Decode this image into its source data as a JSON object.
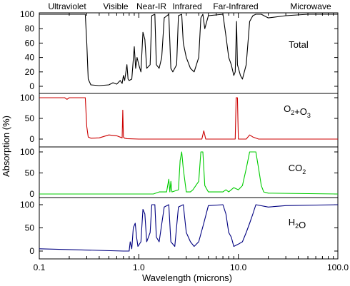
{
  "chart_data": {
    "type": "line",
    "xlabel": "Wavelength (microns)",
    "ylabel": "Absorption (%)",
    "x_scale": "log",
    "xlim": [
      0.1,
      100.0
    ],
    "ylim": [
      0,
      100
    ],
    "x_ticks": [
      {
        "value": 0.1,
        "label": "0.1"
      },
      {
        "value": 1.0,
        "label": "1.0"
      },
      {
        "value": 10.0,
        "label": "10.0"
      },
      {
        "value": 100.0,
        "label": "100.0"
      }
    ],
    "band_labels": [
      "Ultraviolet",
      "Visible",
      "Near-IR",
      "Infrared",
      "Far-Infrared",
      "Microwave"
    ],
    "panels": [
      {
        "name": "Total",
        "color": "#000000",
        "y_ticks": [
          "100",
          "80",
          "60",
          "40",
          "20",
          "0"
        ],
        "points": [
          [
            0.1,
            100
          ],
          [
            0.29,
            100
          ],
          [
            0.3,
            60
          ],
          [
            0.31,
            10
          ],
          [
            0.33,
            2
          ],
          [
            0.4,
            1
          ],
          [
            0.5,
            2
          ],
          [
            0.55,
            5
          ],
          [
            0.6,
            3
          ],
          [
            0.65,
            8
          ],
          [
            0.68,
            4
          ],
          [
            0.7,
            15
          ],
          [
            0.72,
            8
          ],
          [
            0.76,
            30
          ],
          [
            0.78,
            10
          ],
          [
            0.8,
            8
          ],
          [
            0.85,
            10
          ],
          [
            0.9,
            55
          ],
          [
            0.93,
            25
          ],
          [
            0.96,
            40
          ],
          [
            1.0,
            30
          ],
          [
            1.05,
            20
          ],
          [
            1.1,
            75
          ],
          [
            1.15,
            65
          ],
          [
            1.2,
            25
          ],
          [
            1.3,
            30
          ],
          [
            1.35,
            98
          ],
          [
            1.45,
            100
          ],
          [
            1.5,
            30
          ],
          [
            1.6,
            25
          ],
          [
            1.7,
            40
          ],
          [
            1.8,
            95
          ],
          [
            2.0,
            100
          ],
          [
            2.1,
            25
          ],
          [
            2.2,
            20
          ],
          [
            2.4,
            30
          ],
          [
            2.5,
            98
          ],
          [
            2.7,
            100
          ],
          [
            2.8,
            60
          ],
          [
            3.0,
            40
          ],
          [
            3.3,
            25
          ],
          [
            3.6,
            20
          ],
          [
            4.0,
            40
          ],
          [
            4.2,
            95
          ],
          [
            4.4,
            100
          ],
          [
            4.6,
            80
          ],
          [
            5.0,
            98
          ],
          [
            7.0,
            100
          ],
          [
            7.5,
            70
          ],
          [
            8.0,
            40
          ],
          [
            8.5,
            30
          ],
          [
            9.0,
            15
          ],
          [
            9.3,
            20
          ],
          [
            9.6,
            90
          ],
          [
            9.8,
            30
          ],
          [
            10.5,
            15
          ],
          [
            11.0,
            10
          ],
          [
            12.0,
            30
          ],
          [
            13.0,
            90
          ],
          [
            14.0,
            98
          ],
          [
            15.0,
            100
          ],
          [
            17.0,
            100
          ],
          [
            20.0,
            95
          ],
          [
            30.0,
            98
          ],
          [
            50.0,
            100
          ],
          [
            100.0,
            100
          ]
        ]
      },
      {
        "name": "O2+O3",
        "label_main": "O",
        "label_parts": [
          {
            "sub": "2"
          },
          {
            "text": "+O"
          },
          {
            "sub": "3"
          }
        ],
        "color": "#cc0000",
        "y_ticks": [
          "100",
          "50",
          "0"
        ],
        "points": [
          [
            0.1,
            100
          ],
          [
            0.18,
            100
          ],
          [
            0.19,
            96
          ],
          [
            0.2,
            100
          ],
          [
            0.29,
            100
          ],
          [
            0.3,
            30
          ],
          [
            0.31,
            5
          ],
          [
            0.33,
            2
          ],
          [
            0.4,
            3
          ],
          [
            0.5,
            10
          ],
          [
            0.6,
            8
          ],
          [
            0.68,
            3
          ],
          [
            0.69,
            70
          ],
          [
            0.7,
            5
          ],
          [
            0.72,
            2
          ],
          [
            0.76,
            1
          ],
          [
            1.0,
            0
          ],
          [
            4.3,
            0
          ],
          [
            4.5,
            20
          ],
          [
            4.7,
            0
          ],
          [
            9.3,
            0
          ],
          [
            9.5,
            100
          ],
          [
            9.8,
            100
          ],
          [
            10.0,
            0
          ],
          [
            12.0,
            0
          ],
          [
            13.0,
            10
          ],
          [
            14.0,
            5
          ],
          [
            16.0,
            0
          ],
          [
            100.0,
            0
          ]
        ]
      },
      {
        "name": "CO2",
        "label_main": "CO",
        "label_parts": [
          {
            "sub": "2"
          }
        ],
        "color": "#00cc00",
        "y_ticks": [
          "100",
          "50",
          "0"
        ],
        "points": [
          [
            0.1,
            0
          ],
          [
            1.4,
            0
          ],
          [
            1.6,
            5
          ],
          [
            1.9,
            5
          ],
          [
            2.0,
            35
          ],
          [
            2.05,
            5
          ],
          [
            2.1,
            30
          ],
          [
            2.15,
            5
          ],
          [
            2.5,
            10
          ],
          [
            2.6,
            80
          ],
          [
            2.7,
            100
          ],
          [
            2.8,
            60
          ],
          [
            3.0,
            5
          ],
          [
            3.3,
            5
          ],
          [
            3.5,
            10
          ],
          [
            4.0,
            30
          ],
          [
            4.2,
            100
          ],
          [
            4.4,
            100
          ],
          [
            4.6,
            20
          ],
          [
            5.0,
            5
          ],
          [
            7.0,
            5
          ],
          [
            7.5,
            10
          ],
          [
            8.0,
            5
          ],
          [
            9.0,
            15
          ],
          [
            10.0,
            10
          ],
          [
            11.0,
            20
          ],
          [
            12.0,
            60
          ],
          [
            13.0,
            100
          ],
          [
            15.0,
            100
          ],
          [
            16.0,
            60
          ],
          [
            17.0,
            20
          ],
          [
            18.0,
            5
          ],
          [
            20.0,
            2
          ],
          [
            100.0,
            0
          ]
        ]
      },
      {
        "name": "H2O",
        "label_main": "H",
        "label_parts": [
          {
            "sub": "2"
          },
          {
            "text": "O"
          }
        ],
        "color": "#000080",
        "y_ticks": [
          "100",
          "50",
          "0"
        ],
        "points": [
          [
            0.1,
            5
          ],
          [
            0.7,
            0
          ],
          [
            0.8,
            0
          ],
          [
            0.82,
            20
          ],
          [
            0.85,
            5
          ],
          [
            0.88,
            50
          ],
          [
            0.92,
            60
          ],
          [
            0.95,
            30
          ],
          [
            0.98,
            10
          ],
          [
            1.05,
            20
          ],
          [
            1.1,
            90
          ],
          [
            1.15,
            80
          ],
          [
            1.2,
            20
          ],
          [
            1.3,
            40
          ],
          [
            1.35,
            100
          ],
          [
            1.45,
            100
          ],
          [
            1.5,
            30
          ],
          [
            1.6,
            20
          ],
          [
            1.8,
            95
          ],
          [
            2.0,
            100
          ],
          [
            2.1,
            20
          ],
          [
            2.3,
            10
          ],
          [
            2.5,
            95
          ],
          [
            2.8,
            100
          ],
          [
            3.0,
            40
          ],
          [
            3.3,
            20
          ],
          [
            3.6,
            10
          ],
          [
            4.0,
            20
          ],
          [
            4.5,
            60
          ],
          [
            5.0,
            98
          ],
          [
            7.0,
            100
          ],
          [
            7.5,
            80
          ],
          [
            8.0,
            40
          ],
          [
            8.5,
            30
          ],
          [
            9.0,
            10
          ],
          [
            10.0,
            15
          ],
          [
            11.0,
            20
          ],
          [
            12.0,
            40
          ],
          [
            13.0,
            60
          ],
          [
            14.0,
            80
          ],
          [
            15.0,
            100
          ],
          [
            20.0,
            95
          ],
          [
            30.0,
            98
          ],
          [
            100.0,
            100
          ]
        ]
      }
    ]
  }
}
